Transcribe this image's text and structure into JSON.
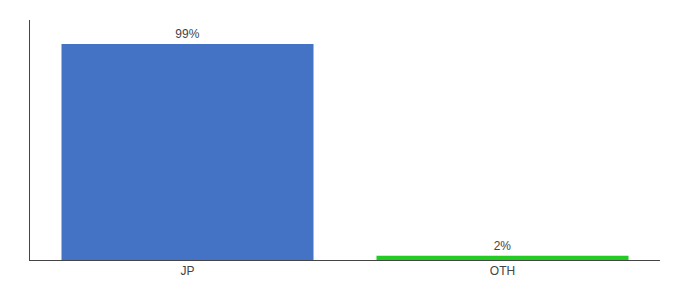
{
  "chart_data": {
    "type": "bar",
    "categories": [
      "JP",
      "OTH"
    ],
    "values": [
      99,
      2
    ],
    "value_labels": [
      "99%",
      "2%"
    ],
    "colors": [
      "#4472C4",
      "#22CC22"
    ],
    "ylim": [
      0,
      110
    ],
    "data_labels": true,
    "tick_labels": "x",
    "grid": false
  }
}
